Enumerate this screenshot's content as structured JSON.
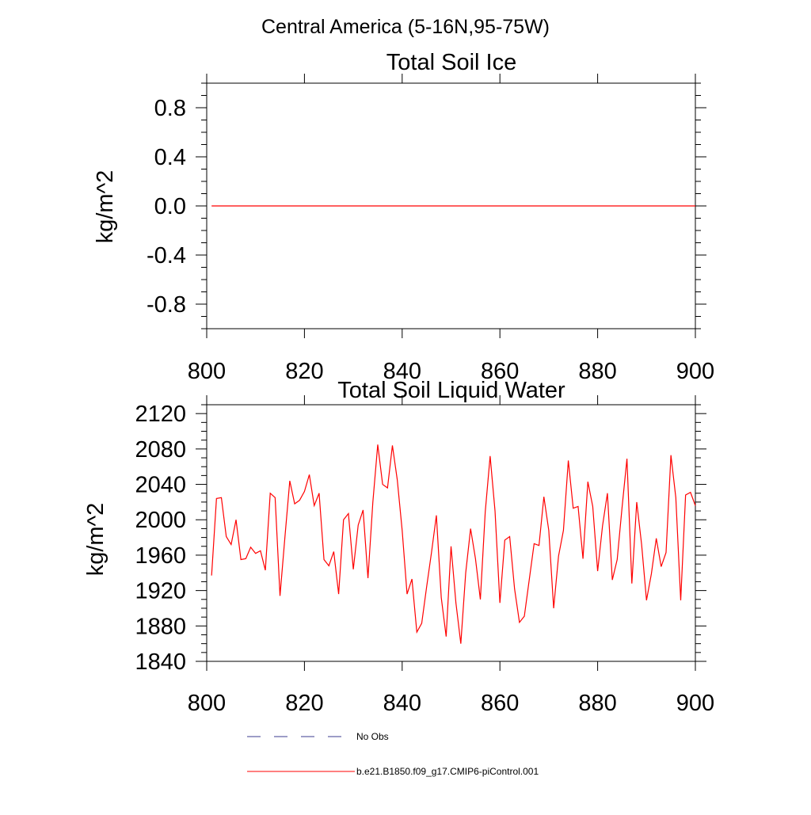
{
  "figure_title": "Central America (5-16N,95-75W)",
  "colors": {
    "series": "#ff0000",
    "obs": "#3b3b8f",
    "axis": "#000000"
  },
  "legend": {
    "obs_label": "No Obs",
    "model_label": "b.e21.B1850.f09_g17.CMIP6-piControl.001"
  },
  "chart_data": [
    {
      "type": "line",
      "title": "Total Soil Ice",
      "xlabel": "",
      "ylabel": "kg/m^2",
      "xlim": [
        800,
        900
      ],
      "ylim": [
        -1.0,
        1.0
      ],
      "xticks": [
        800,
        820,
        840,
        860,
        880,
        900
      ],
      "xtick_labels": [
        "800",
        "820",
        "840",
        "860",
        "880",
        "900"
      ],
      "yticks": [
        -0.8,
        -0.4,
        0.0,
        0.4,
        0.8
      ],
      "ytick_labels": [
        "-0.8",
        "-0.4",
        "0.0",
        "0.4",
        "0.8"
      ],
      "series": [
        {
          "name": "b.e21.B1850.f09_g17.CMIP6-piControl.001",
          "x": [
            801,
            900
          ],
          "values": [
            0,
            0
          ]
        }
      ]
    },
    {
      "type": "line",
      "title": "Total Soil Liquid Water",
      "xlabel": "",
      "ylabel": "kg/m^2",
      "xlim": [
        800,
        900
      ],
      "ylim": [
        1840,
        2130
      ],
      "xticks": [
        800,
        820,
        840,
        860,
        880,
        900
      ],
      "xtick_labels": [
        "800",
        "820",
        "840",
        "860",
        "880",
        "900"
      ],
      "yticks": [
        1840,
        1880,
        1920,
        1960,
        2000,
        2040,
        2080,
        2120
      ],
      "ytick_labels": [
        "1840",
        "1880",
        "1920",
        "1960",
        "2000",
        "2040",
        "2080",
        "2120"
      ],
      "series": [
        {
          "name": "b.e21.B1850.f09_g17.CMIP6-piControl.001",
          "x": [
            801,
            802,
            803,
            804,
            805,
            806,
            807,
            808,
            809,
            810,
            811,
            812,
            813,
            814,
            815,
            816,
            817,
            818,
            819,
            820,
            821,
            822,
            823,
            824,
            825,
            826,
            827,
            828,
            829,
            830,
            831,
            832,
            833,
            834,
            835,
            836,
            837,
            838,
            839,
            840,
            841,
            842,
            843,
            844,
            845,
            846,
            847,
            848,
            849,
            850,
            851,
            852,
            853,
            854,
            855,
            856,
            857,
            858,
            859,
            860,
            861,
            862,
            863,
            864,
            865,
            866,
            867,
            868,
            869,
            870,
            871,
            872,
            873,
            874,
            875,
            876,
            877,
            878,
            879,
            880,
            881,
            882,
            883,
            884,
            885,
            886,
            887,
            888,
            889,
            890,
            891,
            892,
            893,
            894,
            895,
            896,
            897,
            898,
            899,
            900
          ],
          "values": [
            1937,
            2024,
            2025,
            1981,
            1972,
            2000,
            1955,
            1956,
            1969,
            1962,
            1965,
            1943,
            2030,
            2025,
            1914,
            1980,
            2044,
            2018,
            2022,
            2032,
            2051,
            2016,
            2030,
            1955,
            1948,
            1964,
            1916,
            2000,
            2007,
            1944,
            1994,
            2011,
            1934,
            2020,
            2085,
            2040,
            2036,
            2084,
            2045,
            1988,
            1916,
            1933,
            1873,
            1883,
            1924,
            1963,
            2005,
            1912,
            1868,
            1970,
            1906,
            1860,
            1940,
            1990,
            1956,
            1910,
            2009,
            2072,
            2010,
            1906,
            1977,
            1981,
            1922,
            1884,
            1891,
            1932,
            1973,
            1971,
            2026,
            1988,
            1900,
            1959,
            1988,
            2067,
            2013,
            2015,
            1956,
            2043,
            2015,
            1942,
            1993,
            2030,
            1932,
            1955,
            2014,
            2069,
            1928,
            2020,
            1972,
            1909,
            1939,
            1979,
            1947,
            1963,
            2073,
            2025,
            1909,
            2028,
            2031,
            2016
          ]
        }
      ]
    }
  ]
}
